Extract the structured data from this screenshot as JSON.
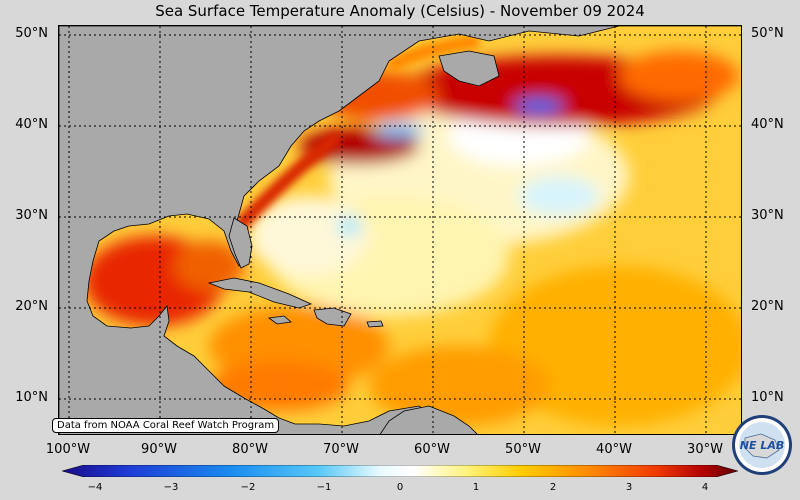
{
  "title": "Sea Surface Temperature Anomaly (Celsius) - November 09 2024",
  "lat_labels": [
    "50°N",
    "40°N",
    "30°N",
    "20°N",
    "10°N"
  ],
  "lon_labels": [
    "100°W",
    "90°W",
    "80°W",
    "70°W",
    "60°W",
    "50°W",
    "40°W",
    "30°W"
  ],
  "credit": "Data from NOAA Coral Reef Watch Program",
  "colorbar": {
    "ticks": [
      "−4",
      "−3",
      "−2",
      "−1",
      "0",
      "1",
      "2",
      "3",
      "4"
    ],
    "range": [
      -4,
      4
    ],
    "colors": [
      "#1a0a8c",
      "#1f3cd6",
      "#1a8cf0",
      "#58c8f8",
      "#c8f2fc",
      "#ffffff",
      "#fff27a",
      "#ffcc00",
      "#ff8a00",
      "#f03a00",
      "#b00000",
      "#600000"
    ]
  },
  "map": {
    "land_color": "#a9a9a9",
    "extent": {
      "lon": [
        -101,
        -26
      ],
      "lat": [
        6,
        51
      ]
    }
  },
  "logo": {
    "text": "NE LAB"
  }
}
